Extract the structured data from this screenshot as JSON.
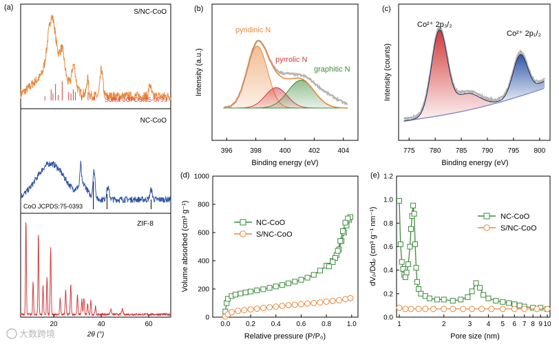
{
  "watermark": "大数跨境",
  "colors": {
    "orange": "#e8873a",
    "blue": "#2f56a6",
    "red": "#d33a3a",
    "green": "#3a8a3a",
    "gray": "#b5b5b5",
    "darkgreen": "#2e7d32"
  },
  "panel_a": {
    "label": "(a)",
    "xlabel": "2θ (°)",
    "ticks": [
      "20",
      "40",
      "60"
    ],
    "traces": [
      {
        "name": "S/NC-CoO",
        "ref": "Sulfur JCPDS:85-0799"
      },
      {
        "name": "NC-CoO",
        "ref": "CoO JCPDS:75-0393"
      },
      {
        "name": "ZIF-8"
      }
    ]
  },
  "chart_data": [
    {
      "id": "b",
      "type": "line",
      "label": "(b)",
      "title": "",
      "xlabel": "Binding energy (eV)",
      "ylabel": "Intensity (a.u.)",
      "xlim": [
        395,
        405
      ],
      "x_reversed": false,
      "ticks": [
        "396",
        "398",
        "400",
        "402",
        "404"
      ],
      "peaks": [
        {
          "name": "pyridinic N",
          "center": 398.1,
          "height": 1.0
        },
        {
          "name": "pyrrolic N",
          "center": 399.4,
          "height": 0.33
        },
        {
          "name": "graphitic N",
          "center": 401.1,
          "height": 0.45
        }
      ]
    },
    {
      "id": "c",
      "type": "line",
      "label": "(c)",
      "xlabel": "Binding energy (eV)",
      "ylabel": "Intensity (counts)",
      "xlim": [
        773,
        802
      ],
      "ticks": [
        "775",
        "780",
        "785",
        "790",
        "795",
        "800"
      ],
      "peaks": [
        {
          "name": "Co²⁺ 2p₃/₂",
          "center": 780.8,
          "height": 1.0
        },
        {
          "name": "Co²⁺ 2p₁/₂",
          "center": 796.3,
          "height": 0.55
        }
      ]
    },
    {
      "id": "d",
      "type": "scatter",
      "label": "(d)",
      "xlabel": "Relative pressure (P/P₀)",
      "ylabel": "Volume absorbed (cm³ g⁻¹)",
      "xlim": [
        -0.1,
        1.05
      ],
      "ylim": [
        0,
        1000
      ],
      "xticks": [
        "0.0",
        "0.2",
        "0.4",
        "0.6",
        "0.8",
        "1.0"
      ],
      "yticks": [
        "0",
        "200",
        "400",
        "600",
        "800",
        "1000"
      ],
      "series": [
        {
          "name": "NC-CoO",
          "x": [
            0.0,
            0.01,
            0.02,
            0.05,
            0.08,
            0.12,
            0.16,
            0.2,
            0.25,
            0.3,
            0.35,
            0.4,
            0.45,
            0.5,
            0.55,
            0.6,
            0.65,
            0.7,
            0.75,
            0.8,
            0.85,
            0.88,
            0.9,
            0.92,
            0.94,
            0.96,
            0.98,
            0.99,
            0.97,
            0.95,
            0.93,
            0.91,
            0.89,
            0.87,
            0.85,
            0.82
          ],
          "y": [
            40,
            100,
            130,
            150,
            160,
            168,
            175,
            182,
            190,
            198,
            208,
            218,
            228,
            240,
            252,
            265,
            280,
            300,
            330,
            365,
            400,
            440,
            480,
            540,
            600,
            650,
            690,
            710,
            700,
            670,
            610,
            540,
            470,
            420,
            390,
            360
          ]
        },
        {
          "name": "S/NC-CoO",
          "x": [
            0.0,
            0.02,
            0.05,
            0.1,
            0.15,
            0.2,
            0.25,
            0.3,
            0.35,
            0.4,
            0.45,
            0.5,
            0.55,
            0.6,
            0.65,
            0.7,
            0.75,
            0.8,
            0.85,
            0.9,
            0.95,
            0.99
          ],
          "y": [
            5,
            20,
            35,
            45,
            50,
            55,
            60,
            65,
            70,
            75,
            80,
            85,
            88,
            92,
            96,
            100,
            105,
            110,
            115,
            120,
            128,
            135
          ]
        }
      ]
    },
    {
      "id": "e",
      "type": "scatter",
      "label": "(e)",
      "xlabel": "Pore size (nm)",
      "ylabel": "dVₚ/Ddₚ (cm³ g⁻¹ nm⁻¹)",
      "xscale": "log",
      "xlim": [
        1,
        10
      ],
      "ylim": [
        0,
        1.2
      ],
      "xticks": [
        "1",
        "2",
        "3",
        "4",
        "5",
        "6",
        "7",
        "8",
        "9",
        "10"
      ],
      "yticks": [
        "0.0",
        "0.2",
        "0.4",
        "0.6",
        "0.8",
        "1.0",
        "1.2"
      ],
      "series": [
        {
          "name": "NC-CoO",
          "x": [
            1.0,
            1.02,
            1.04,
            1.06,
            1.08,
            1.1,
            1.12,
            1.15,
            1.18,
            1.2,
            1.22,
            1.24,
            1.26,
            1.28,
            1.3,
            1.32,
            1.35,
            1.4,
            1.5,
            1.6,
            1.8,
            2.0,
            2.3,
            2.6,
            2.9,
            3.1,
            3.3,
            3.5,
            3.7,
            4.0,
            4.5,
            5.0,
            5.5,
            6.0,
            6.5,
            7.0,
            8.0,
            9.0,
            10.0
          ],
          "y": [
            0.99,
            0.62,
            0.47,
            0.41,
            0.36,
            0.34,
            0.38,
            0.45,
            0.6,
            0.75,
            0.86,
            0.95,
            0.88,
            0.62,
            0.42,
            0.3,
            0.24,
            0.2,
            0.18,
            0.16,
            0.15,
            0.15,
            0.14,
            0.15,
            0.17,
            0.22,
            0.29,
            0.25,
            0.19,
            0.16,
            0.14,
            0.13,
            0.12,
            0.11,
            0.1,
            0.09,
            0.08,
            0.08,
            0.07
          ]
        },
        {
          "name": "S/NC-CoO",
          "x": [
            1.0,
            1.1,
            1.2,
            1.35,
            1.5,
            1.7,
            2.0,
            2.3,
            2.7,
            3.1,
            3.6,
            4.2,
            5.0,
            6.0,
            7.0,
            8.5,
            10.0
          ],
          "y": [
            0.08,
            0.07,
            0.07,
            0.07,
            0.07,
            0.07,
            0.07,
            0.07,
            0.07,
            0.07,
            0.07,
            0.07,
            0.07,
            0.07,
            0.07,
            0.07,
            0.07
          ]
        }
      ]
    }
  ]
}
